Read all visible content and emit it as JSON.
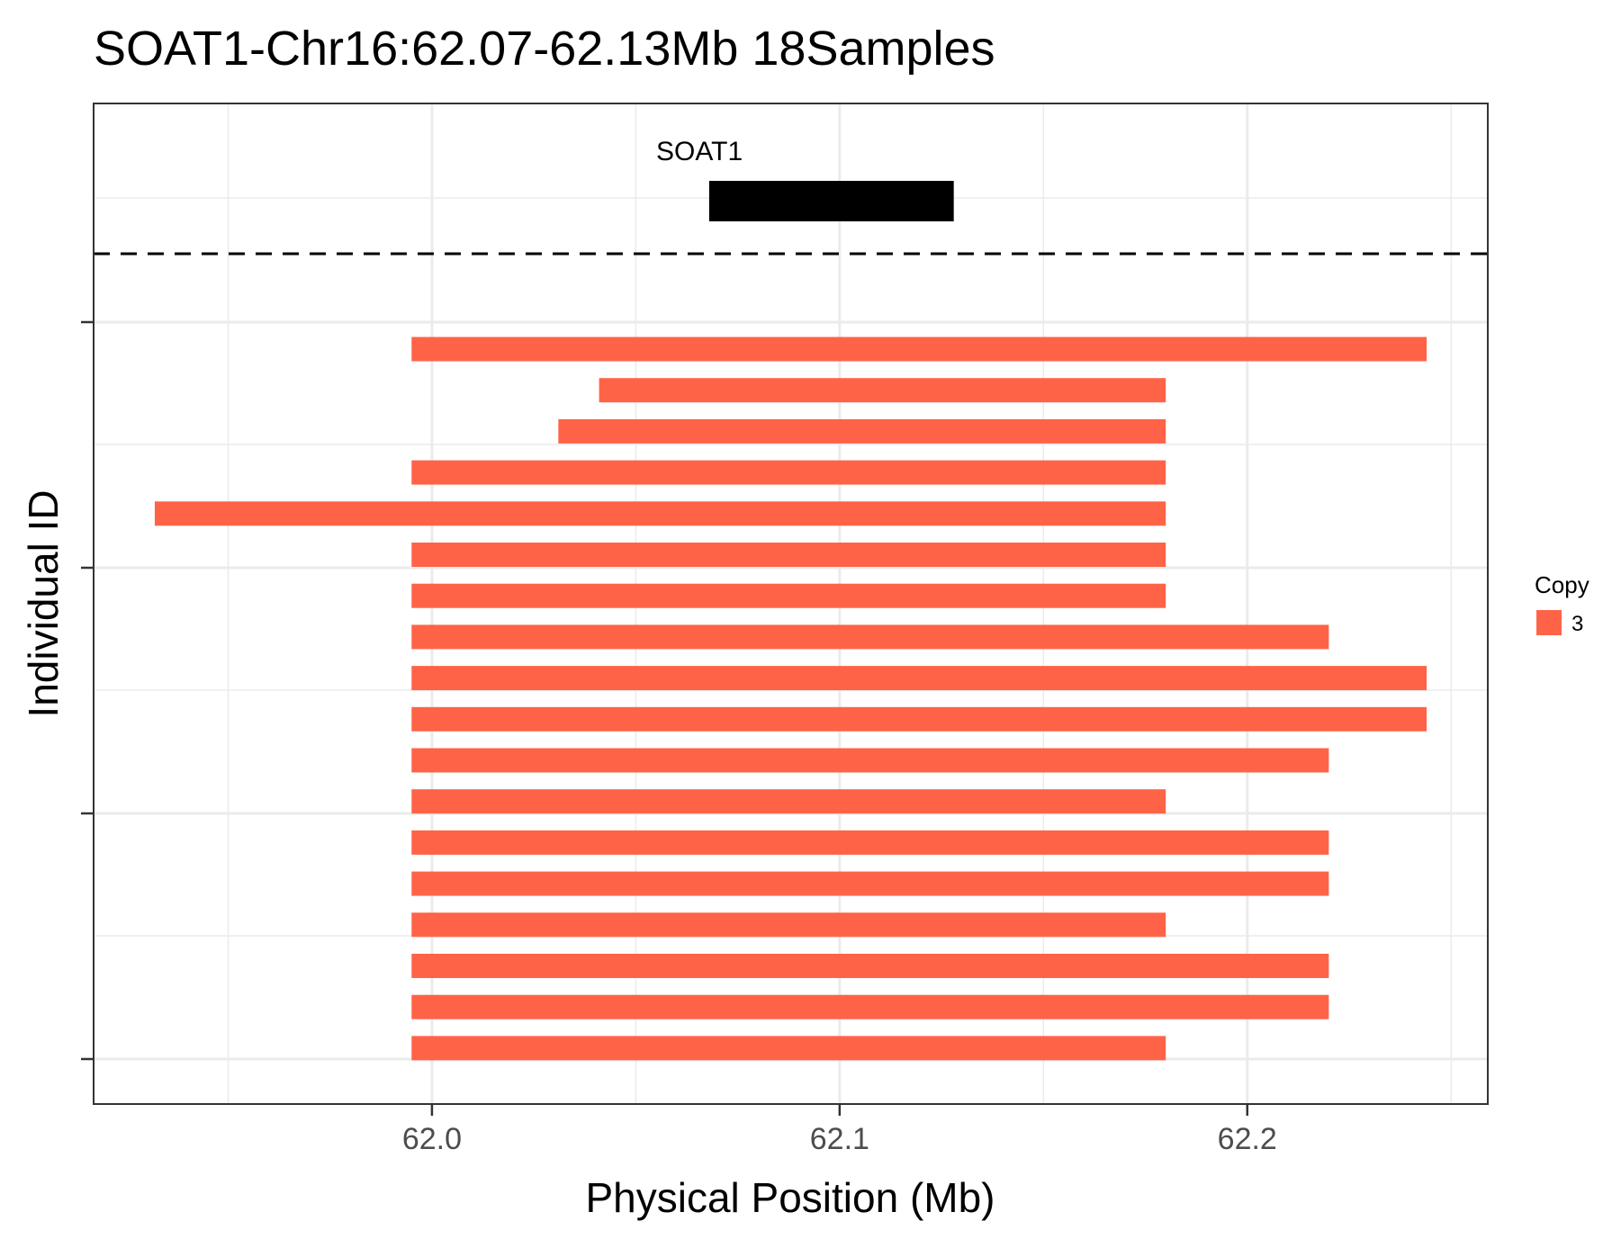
{
  "chart_data": {
    "type": "bar",
    "orientation": "horizontal-segments",
    "title": "SOAT1-Chr16:62.07-62.13Mb 18Samples",
    "xlabel": "Physical Position (Mb)",
    "ylabel": "Individual ID",
    "xlim": [
      61.917,
      62.259
    ],
    "x_ticks": [
      62.0,
      62.1,
      62.2
    ],
    "x_tick_labels": [
      "62.0",
      "62.1",
      "62.2"
    ],
    "grid": true,
    "gene": {
      "name": "SOAT1",
      "start": 62.068,
      "end": 62.128,
      "color": "#000000"
    },
    "segments": [
      {
        "start": 61.995,
        "end": 62.244
      },
      {
        "start": 62.041,
        "end": 62.18
      },
      {
        "start": 62.031,
        "end": 62.18
      },
      {
        "start": 61.995,
        "end": 62.18
      },
      {
        "start": 61.932,
        "end": 62.18
      },
      {
        "start": 61.995,
        "end": 62.18
      },
      {
        "start": 61.995,
        "end": 62.18
      },
      {
        "start": 61.995,
        "end": 62.22
      },
      {
        "start": 61.995,
        "end": 62.244
      },
      {
        "start": 61.995,
        "end": 62.244
      },
      {
        "start": 61.995,
        "end": 62.22
      },
      {
        "start": 61.995,
        "end": 62.18
      },
      {
        "start": 61.995,
        "end": 62.22
      },
      {
        "start": 61.995,
        "end": 62.22
      },
      {
        "start": 61.995,
        "end": 62.18
      },
      {
        "start": 61.995,
        "end": 62.22
      },
      {
        "start": 61.995,
        "end": 62.22
      },
      {
        "start": 61.995,
        "end": 62.18
      }
    ],
    "segment_color": "#ff6347",
    "legend": {
      "title": "Copy",
      "items": [
        {
          "label": "3",
          "color": "#ff6347"
        }
      ],
      "position": "right"
    }
  }
}
